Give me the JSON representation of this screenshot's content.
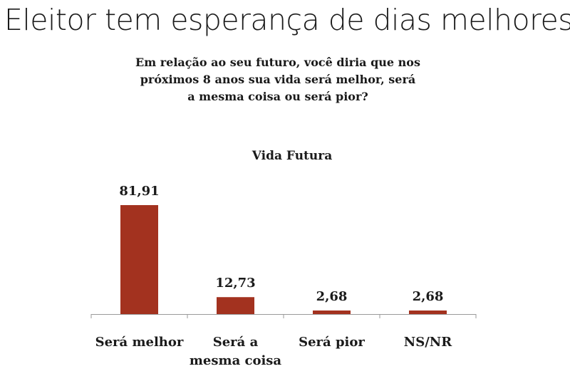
{
  "headline": "Eleitor tem esperança de dias melhores",
  "question": [
    "Em relação ao seu futuro, você diria que nos",
    "próximos 8 anos sua vida será melhor, será",
    "a mesma coisa ou será pior?"
  ],
  "chart_data": {
    "type": "bar",
    "title": "Vida Futura",
    "categories": [
      [
        "Será melhor"
      ],
      [
        "Será a",
        "mesma coisa"
      ],
      [
        "Será pior"
      ],
      [
        "NS/NR"
      ]
    ],
    "values": [
      81.91,
      12.73,
      2.68,
      2.68
    ],
    "value_labels": [
      "81,91",
      "12,73",
      "2,68",
      "2,68"
    ],
    "xlabel": "",
    "ylabel": "",
    "ylim": [
      0,
      100
    ],
    "grid": false,
    "legend": "none",
    "bar_color": "#a3321f",
    "axis_color": "#9a9a9a"
  }
}
